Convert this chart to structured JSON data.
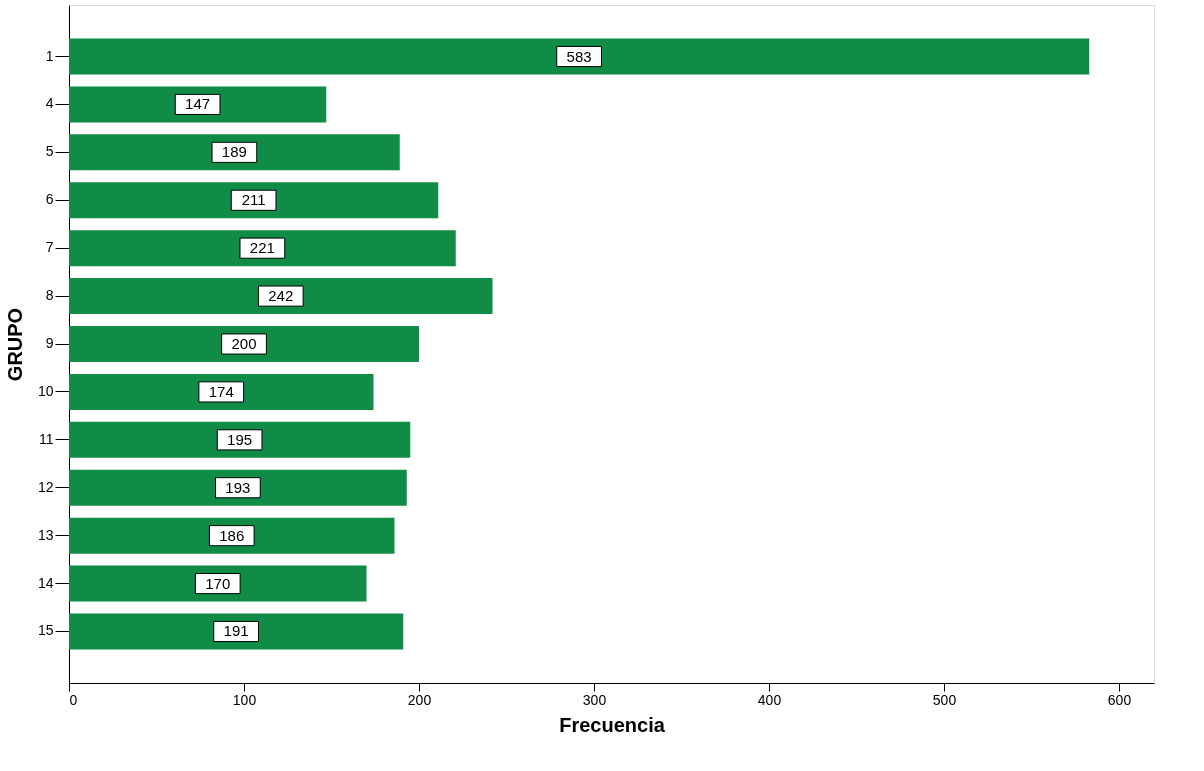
{
  "chart_data": {
    "type": "bar",
    "orientation": "horizontal",
    "xlabel": "Frecuencia",
    "ylabel": "GRUPO",
    "categories": [
      "1",
      "4",
      "5",
      "6",
      "7",
      "8",
      "9",
      "10",
      "11",
      "12",
      "13",
      "14",
      "15"
    ],
    "values": [
      583,
      147,
      189,
      211,
      221,
      242,
      200,
      174,
      195,
      193,
      186,
      170,
      191
    ],
    "color": "#118c47",
    "xlim": [
      0,
      620
    ],
    "xticks": [
      0,
      100,
      200,
      300,
      400,
      500,
      600
    ],
    "data_labels": true,
    "grid": false,
    "legend": false
  }
}
